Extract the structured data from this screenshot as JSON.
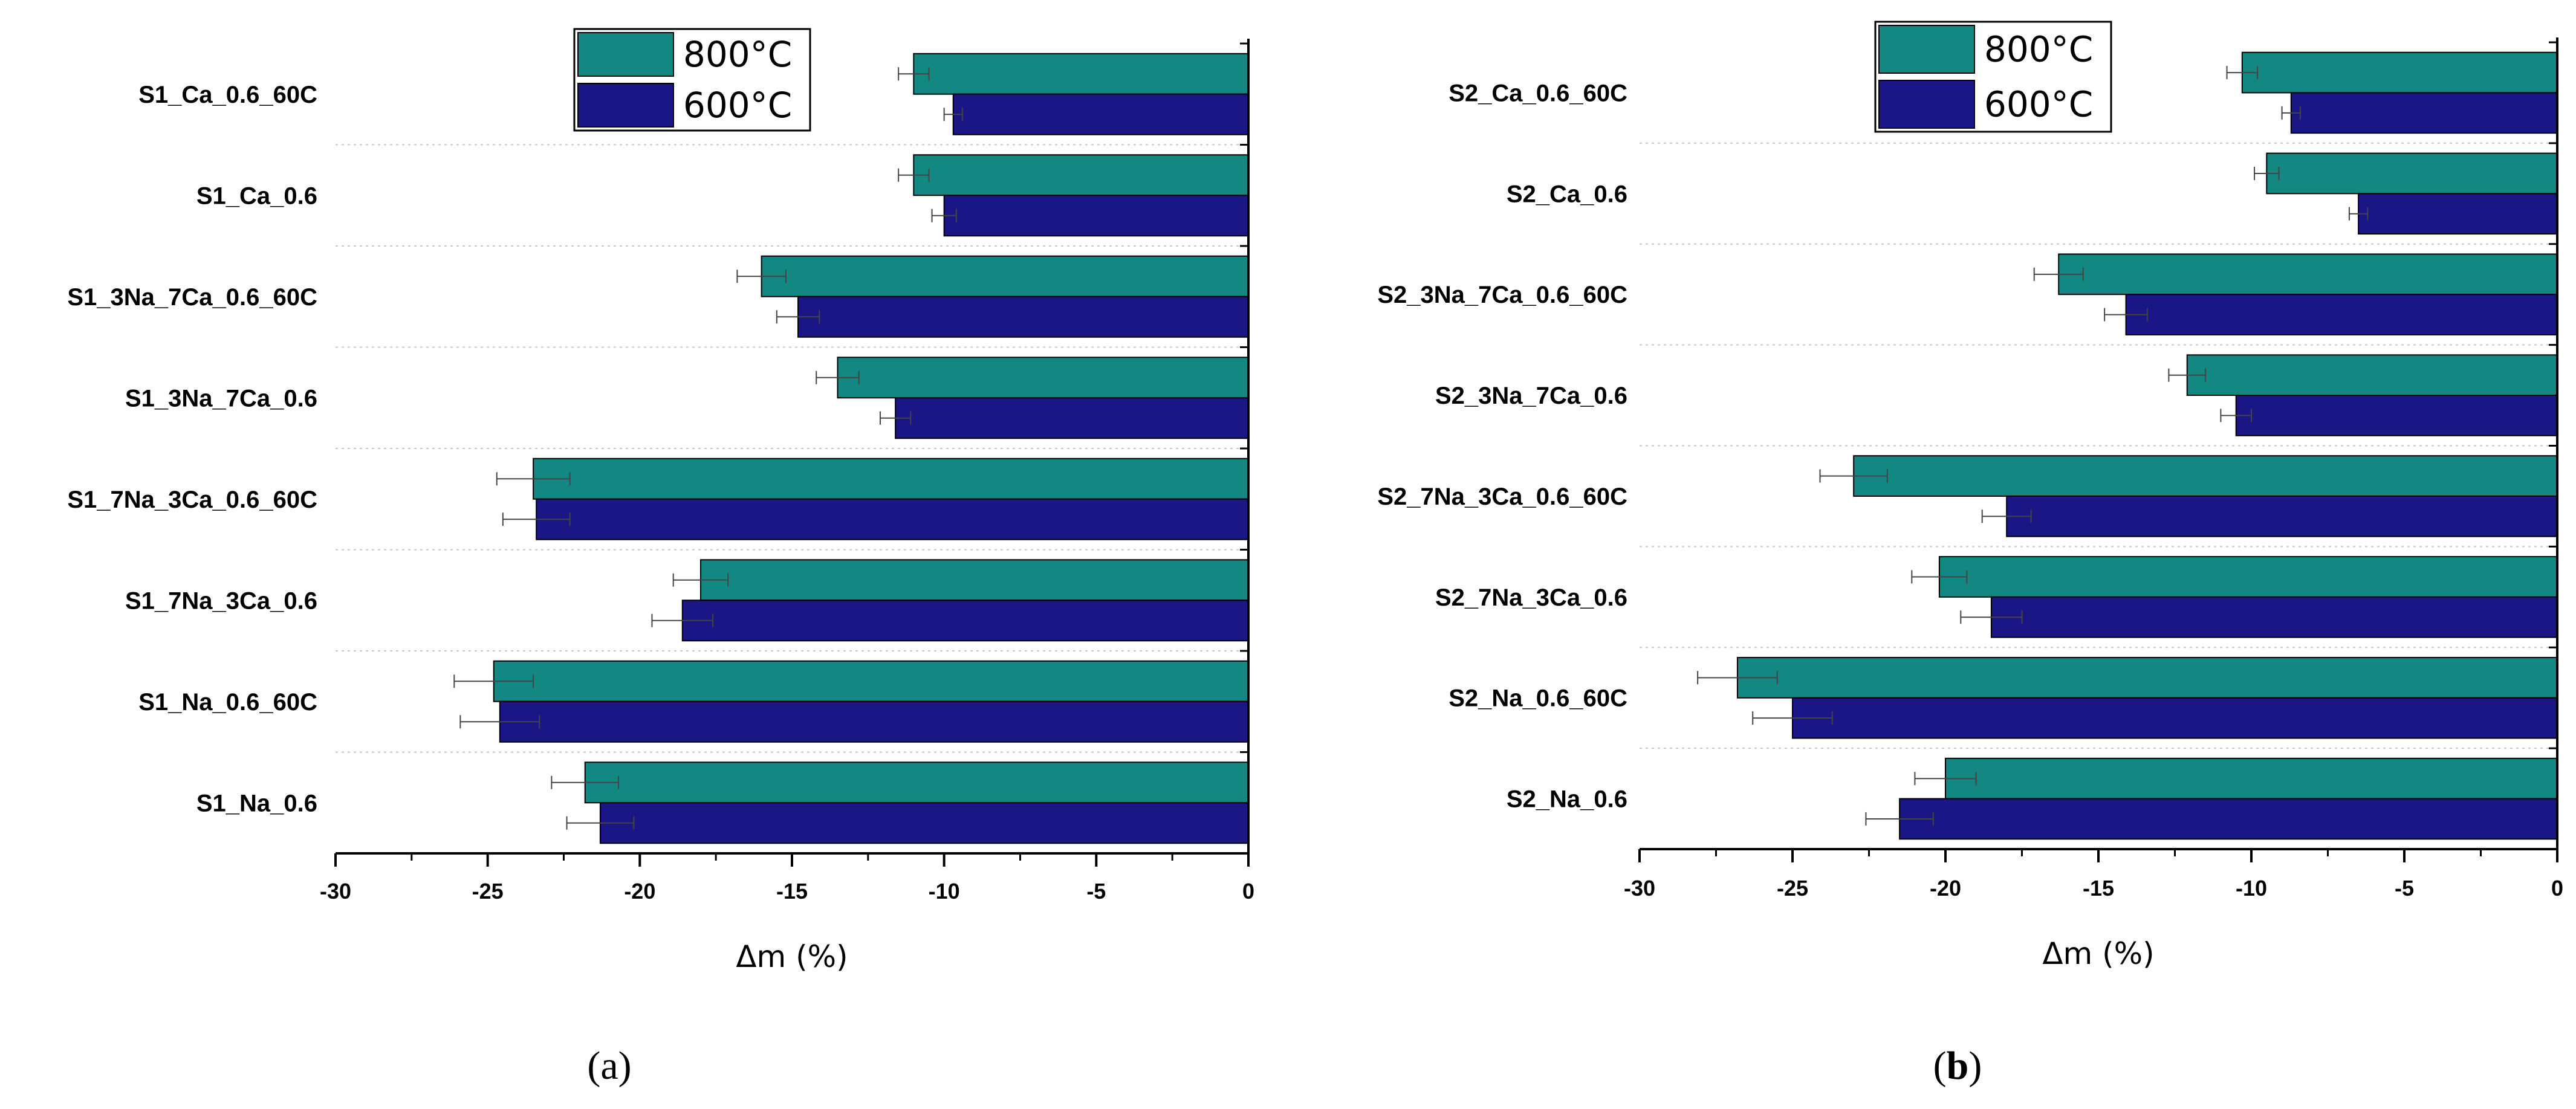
{
  "colors": {
    "s800": "#138782",
    "s600": "#1b1685",
    "axis": "#000000",
    "grid": "#c8c8c8",
    "error": "#444444"
  },
  "chart_data": [
    {
      "type": "bar",
      "orientation": "horizontal",
      "panel_label": "a",
      "xlabel": "Δm (%)",
      "xlim": [
        -30,
        0
      ],
      "xticks": [
        "-30",
        "-25",
        "-20",
        "-15",
        "-10",
        "-5",
        "0"
      ],
      "legend_position": "top-left",
      "categories": [
        "S1_Ca_0.6_60C",
        "S1_Ca_0.6",
        "S1_3Na_7Ca_0.6_60C",
        "S1_3Na_7Ca_0.6",
        "S1_7Na_3Ca_0.6_60C",
        "S1_7Na_3Ca_0.6",
        "S1_Na_0.6_60C",
        "S1_Na_0.6"
      ],
      "series": [
        {
          "name": "800°C",
          "values": [
            -11.0,
            -11.0,
            -16.0,
            -13.5,
            -23.5,
            -18.0,
            -24.8,
            -21.8
          ],
          "errors": [
            0.5,
            0.5,
            0.8,
            0.7,
            1.2,
            0.9,
            1.3,
            1.1
          ]
        },
        {
          "name": "600°C",
          "values": [
            -9.7,
            -10.0,
            -14.8,
            -11.6,
            -23.4,
            -18.6,
            -24.6,
            -21.3
          ],
          "errors": [
            0.3,
            0.4,
            0.7,
            0.5,
            1.1,
            1.0,
            1.3,
            1.1
          ]
        }
      ]
    },
    {
      "type": "bar",
      "orientation": "horizontal",
      "panel_label": "b",
      "xlabel": "Δm (%)",
      "xlim": [
        -30,
        0
      ],
      "xticks": [
        "-30",
        "-25",
        "-20",
        "-15",
        "-10",
        "-5",
        "0"
      ],
      "legend_position": "top-left",
      "categories": [
        "S2_Ca_0.6_60C",
        "S2_Ca_0.6",
        "S2_3Na_7Ca_0.6_60C",
        "S2_3Na_7Ca_0.6",
        "S2_7Na_3Ca_0.6_60C",
        "S2_7Na_3Ca_0.6",
        "S2_Na_0.6_60C",
        "S2_Na_0.6"
      ],
      "series": [
        {
          "name": "800°C",
          "values": [
            -10.3,
            -9.5,
            -16.3,
            -12.1,
            -23.0,
            -20.2,
            -26.8,
            -20.0
          ],
          "errors": [
            0.5,
            0.4,
            0.8,
            0.6,
            1.1,
            0.9,
            1.3,
            1.0
          ]
        },
        {
          "name": "600°C",
          "values": [
            -8.7,
            -6.5,
            -14.1,
            -10.5,
            -18.0,
            -18.5,
            -25.0,
            -21.5
          ],
          "errors": [
            0.3,
            0.3,
            0.7,
            0.5,
            0.8,
            1.0,
            1.3,
            1.1
          ]
        }
      ]
    }
  ]
}
